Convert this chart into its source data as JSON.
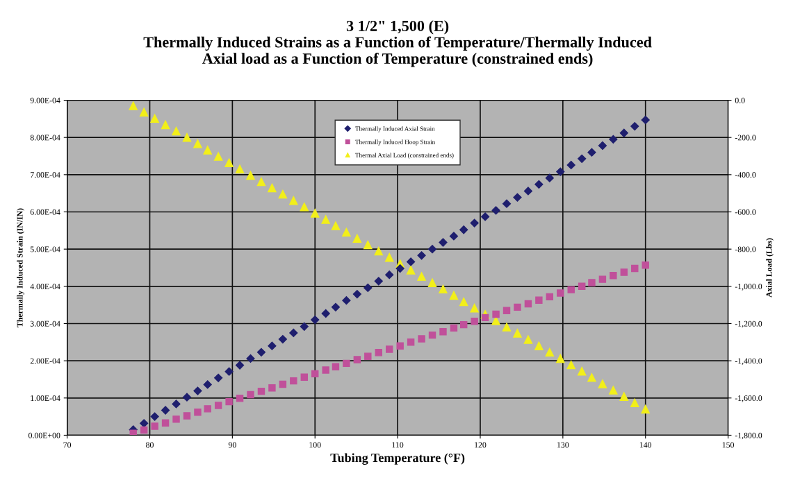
{
  "chart_data": {
    "type": "scatter",
    "title": "3 1/2\" 1,500 (E)\nThermally Induced Strains as a Function of Temperature/Thermally Induced\nAxial load as a Function of Temperature (constrained ends)",
    "xlabel": "Tubing Temperature (°F)",
    "ylabel": "Thermally Induced Strain (IN/IN)",
    "y2label": "Axial Load (Lbs)",
    "x": [
      78.0,
      79.3,
      80.6,
      81.9,
      83.2,
      84.5,
      85.8,
      87.0,
      88.3,
      89.6,
      90.9,
      92.2,
      93.5,
      94.8,
      96.1,
      97.4,
      98.7,
      100.0,
      101.3,
      102.5,
      103.8,
      105.1,
      106.4,
      107.7,
      109.0,
      110.3,
      111.6,
      112.9,
      114.2,
      115.5,
      116.8,
      118.0,
      119.3,
      120.6,
      121.9,
      123.2,
      124.5,
      125.8,
      127.1,
      128.4,
      129.7,
      131.0,
      132.3,
      133.5,
      134.8,
      136.1,
      137.4,
      138.7,
      140.0
    ],
    "series": [
      {
        "name": "Thermally Induced Axial Strain",
        "color": "#1f1f6e",
        "marker": "diamond",
        "values": [
          1.5e-05,
          3.2e-05,
          5e-05,
          6.7e-05,
          8.4e-05,
          0.000102,
          0.000119,
          0.000136,
          0.000154,
          0.000171,
          0.000188,
          0.000206,
          0.000223,
          0.00024,
          0.000258,
          0.000275,
          0.000292,
          0.00031,
          0.000327,
          0.000344,
          0.000362,
          0.000379,
          0.000396,
          0.000414,
          0.000431,
          0.000448,
          0.000466,
          0.000483,
          0.0005,
          0.000518,
          0.000535,
          0.000552,
          0.00057,
          0.000587,
          0.000604,
          0.000622,
          0.000639,
          0.000656,
          0.000674,
          0.000691,
          0.000708,
          0.000726,
          0.000743,
          0.00076,
          0.000778,
          0.000795,
          0.000812,
          0.00083,
          0.000847
        ]
      },
      {
        "name": "Thermally Induced Hoop Strain",
        "color": "#c0509a",
        "marker": "square",
        "values": [
          5e-06,
          1.4e-05,
          2.4e-05,
          3.3e-05,
          4.3e-05,
          5.2e-05,
          6.2e-05,
          7.1e-05,
          8e-05,
          9e-05,
          9.9e-05,
          0.000109,
          0.000118,
          0.000127,
          0.000137,
          0.000146,
          0.000156,
          0.000165,
          0.000175,
          0.000184,
          0.000193,
          0.000203,
          0.000212,
          0.000222,
          0.000231,
          0.00024,
          0.00025,
          0.000259,
          0.000269,
          0.000278,
          0.000288,
          0.000297,
          0.000306,
          0.000316,
          0.000325,
          0.000335,
          0.000344,
          0.000353,
          0.000363,
          0.000372,
          0.000382,
          0.000391,
          0.0004,
          0.00041,
          0.000419,
          0.000429,
          0.000438,
          0.000448,
          0.000457
        ]
      },
      {
        "name": "Thermal Axial Load (constrained ends)",
        "color": "#f2ef1a",
        "marker": "triangle",
        "axis": "y2",
        "values": [
          -30,
          -64,
          -98,
          -132,
          -166,
          -200,
          -234,
          -268,
          -302,
          -336,
          -370,
          -404,
          -438,
          -471,
          -505,
          -539,
          -573,
          -607,
          -641,
          -675,
          -709,
          -743,
          -777,
          -811,
          -845,
          -879,
          -913,
          -947,
          -981,
          -1015,
          -1049,
          -1083,
          -1117,
          -1151,
          -1185,
          -1219,
          -1252,
          -1286,
          -1320,
          -1354,
          -1388,
          -1422,
          -1456,
          -1490,
          -1524,
          -1558,
          -1592,
          -1626,
          -1660
        ]
      }
    ],
    "xlim": [
      70,
      150
    ],
    "xticks": [
      70,
      80,
      90,
      100,
      110,
      120,
      130,
      140,
      150
    ],
    "ylim": [
      0,
      0.0009
    ],
    "yticks": [
      {
        "value": 0,
        "label": "0.00E+00"
      },
      {
        "value": 0.0001,
        "label": "1.00E-04"
      },
      {
        "value": 0.0002,
        "label": "2.00E-04"
      },
      {
        "value": 0.0003,
        "label": "3.00E-04"
      },
      {
        "value": 0.0004,
        "label": "4.00E-04"
      },
      {
        "value": 0.0005,
        "label": "5.00E-04"
      },
      {
        "value": 0.0006,
        "label": "6.00E-04"
      },
      {
        "value": 0.0007,
        "label": "7.00E-04"
      },
      {
        "value": 0.0008,
        "label": "8.00E-04"
      },
      {
        "value": 0.0009,
        "label": "9.00E-04"
      }
    ],
    "y2lim": [
      -1800,
      0
    ],
    "y2ticks": [
      {
        "value": 0,
        "label": "0.0"
      },
      {
        "value": -200,
        "label": "-200.0"
      },
      {
        "value": -400,
        "label": "-400.0"
      },
      {
        "value": -600,
        "label": "-600.0"
      },
      {
        "value": -800,
        "label": "-800.0"
      },
      {
        "value": -1000,
        "label": "-1,000.0"
      },
      {
        "value": -1200,
        "label": "-1,200.0"
      },
      {
        "value": -1400,
        "label": "-1,400.0"
      },
      {
        "value": -1600,
        "label": "-1,600.0"
      },
      {
        "value": -1800,
        "label": "-1,800.0"
      }
    ],
    "grid": true,
    "legend": "top"
  }
}
